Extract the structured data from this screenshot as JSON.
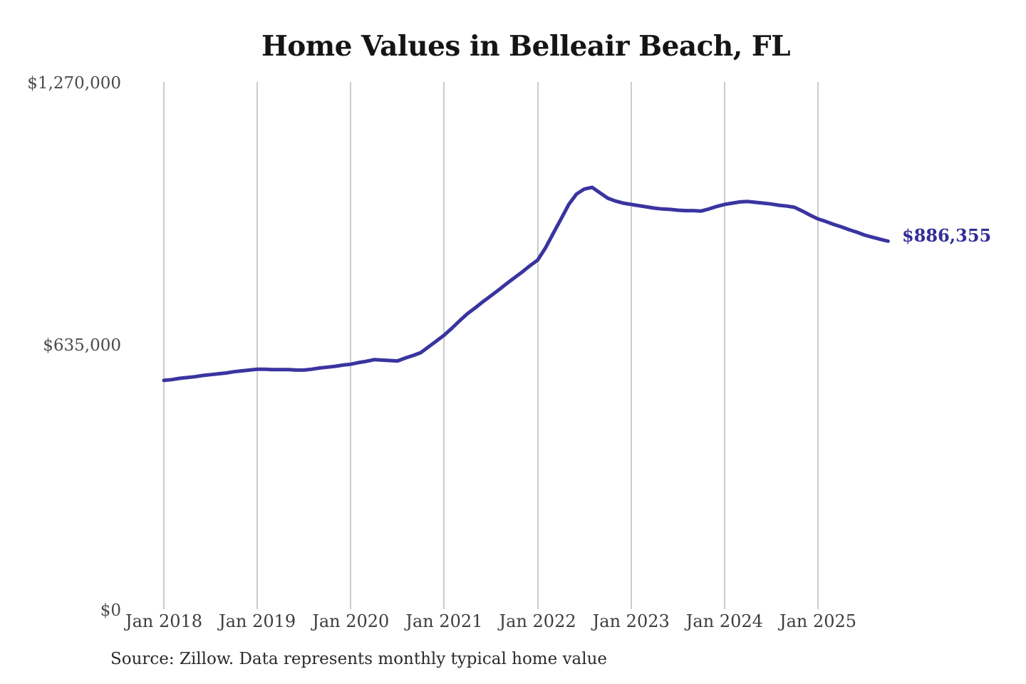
{
  "page": {
    "background": "#ffffff"
  },
  "chart_data": {
    "type": "line",
    "title": "Home Values in Belleair Beach, FL",
    "source_note": "Source: Zillow. Data represents monthly typical home value",
    "end_label": "$886,355",
    "end_value": 886355,
    "x_tick_labels": [
      "Jan 2018",
      "Jan 2019",
      "Jan 2020",
      "Jan 2021",
      "Jan 2022",
      "Jan 2023",
      "Jan 2024",
      "Jan 2025"
    ],
    "y_tick_labels": [
      "$0",
      "$635,000",
      "$1,270,000"
    ],
    "y_min": 0,
    "y_max": 1270000,
    "grid": "vertical-only",
    "legend": "none",
    "line_width": 5,
    "gridline_color": "#cbcbcb",
    "label_color": "#322d99",
    "series": [
      {
        "name": "Monthly typical home value",
        "color": "#3a34a0",
        "start_month": "2018-01",
        "end_month": "2025-10",
        "values": [
          551000,
          553000,
          556000,
          558000,
          560000,
          563000,
          565000,
          567000,
          569000,
          572000,
          574000,
          576000,
          578000,
          578000,
          577000,
          577000,
          577000,
          576000,
          576000,
          578000,
          581000,
          583000,
          585000,
          588000,
          590000,
          594000,
          597000,
          601000,
          600000,
          599000,
          598000,
          605000,
          611000,
          618000,
          632000,
          646000,
          660000,
          677000,
          695000,
          712000,
          726000,
          741000,
          755000,
          769000,
          784000,
          798000,
          812000,
          827000,
          841000,
          870000,
          905000,
          940000,
          975000,
          1000000,
          1012000,
          1016000,
          1003000,
          990000,
          983000,
          978000,
          975000,
          972000,
          969000,
          966000,
          964000,
          963000,
          961000,
          960000,
          960000,
          959000,
          964000,
          970000,
          975000,
          978000,
          981000,
          982000,
          980000,
          978000,
          976000,
          973000,
          971000,
          968000,
          959000,
          949000,
          940000,
          934000,
          927000,
          921000,
          914000,
          908000,
          901000,
          896000,
          891000,
          886355
        ]
      }
    ]
  }
}
